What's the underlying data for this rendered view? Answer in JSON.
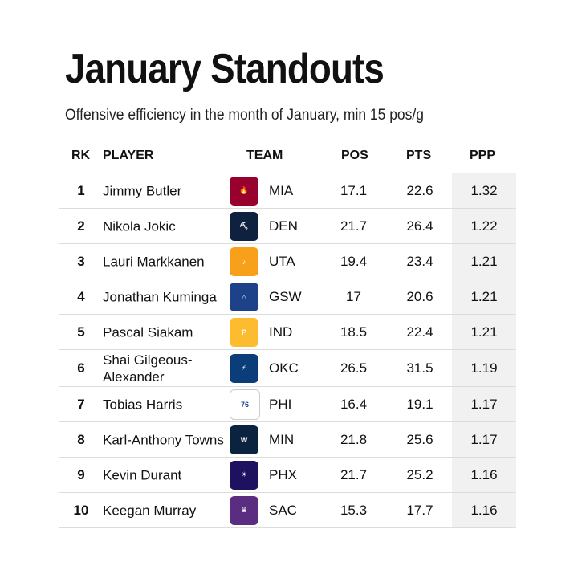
{
  "title": "January Standouts",
  "subtitle": "Offensive efficiency in the month of January, min 15 pos/g",
  "headers": {
    "rk": "RK",
    "player": "PLAYER",
    "team": "TEAM",
    "pos": "POS",
    "pts": "PTS",
    "ppp": "PPP"
  },
  "rows": [
    {
      "rk": "1",
      "player": "Jimmy Butler",
      "team": "MIA",
      "pos": "17.1",
      "pts": "22.6",
      "ppp": "1.32",
      "logo_color": "#98002E",
      "logo_icon": "heat-logo"
    },
    {
      "rk": "2",
      "player": "Nikola Jokic",
      "team": "DEN",
      "pos": "21.7",
      "pts": "26.4",
      "ppp": "1.22",
      "logo_color": "#0E2240",
      "logo_icon": "nuggets-logo"
    },
    {
      "rk": "3",
      "player": "Lauri Markkanen",
      "team": "UTA",
      "pos": "19.4",
      "pts": "23.4",
      "ppp": "1.21",
      "logo_color": "#F9A01B",
      "logo_icon": "jazz-logo"
    },
    {
      "rk": "4",
      "player": "Jonathan Kuminga",
      "team": "GSW",
      "pos": "17",
      "pts": "20.6",
      "ppp": "1.21",
      "logo_color": "#1D428A",
      "logo_icon": "warriors-logo"
    },
    {
      "rk": "5",
      "player": "Pascal Siakam",
      "team": "IND",
      "pos": "18.5",
      "pts": "22.4",
      "ppp": "1.21",
      "logo_color": "#FDBB30",
      "logo_icon": "pacers-logo"
    },
    {
      "rk": "6",
      "player": "Shai Gilgeous-Alexander",
      "team": "OKC",
      "pos": "26.5",
      "pts": "31.5",
      "ppp": "1.19",
      "logo_color": "#0B3D7A",
      "logo_icon": "thunder-logo"
    },
    {
      "rk": "7",
      "player": "Tobias Harris",
      "team": "PHI",
      "pos": "16.4",
      "pts": "19.1",
      "ppp": "1.17",
      "logo_color": "#ffffff",
      "logo_icon": "76ers-logo"
    },
    {
      "rk": "8",
      "player": "Karl-Anthony Towns",
      "team": "MIN",
      "pos": "21.8",
      "pts": "25.6",
      "ppp": "1.17",
      "logo_color": "#0C2340",
      "logo_icon": "timberwolves-logo"
    },
    {
      "rk": "9",
      "player": "Kevin Durant",
      "team": "PHX",
      "pos": "21.7",
      "pts": "25.2",
      "ppp": "1.16",
      "logo_color": "#1D1160",
      "logo_icon": "suns-logo"
    },
    {
      "rk": "10",
      "player": "Keegan Murray",
      "team": "SAC",
      "pos": "15.3",
      "pts": "17.7",
      "ppp": "1.16",
      "logo_color": "#5A2D81",
      "logo_icon": "kings-logo"
    }
  ]
}
